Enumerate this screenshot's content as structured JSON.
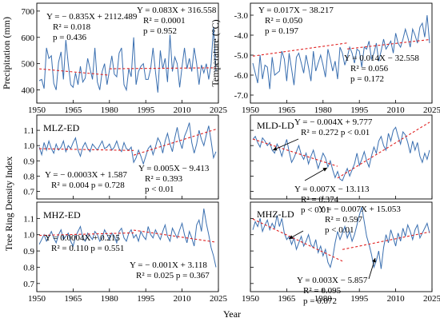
{
  "chart_data": {
    "type": "line",
    "xlabel": "Year",
    "shared_ylabel": "Tree Ring Density Index",
    "colors": {
      "series": "#3a6fb0",
      "trend": "#e02020"
    },
    "panels": [
      {
        "id": "prec",
        "label": "",
        "ylabel": "Precipitation (mm)",
        "xlim": [
          1950,
          2025
        ],
        "ylim": [
          350,
          730
        ],
        "xticks": [
          1950,
          1965,
          1980,
          1995,
          2010,
          2025
        ],
        "yticks": [
          400,
          500,
          600,
          700
        ],
        "x_start": 1951,
        "values": [
          435,
          440,
          405,
          560,
          520,
          530,
          425,
          400,
          505,
          545,
          440,
          590,
          500,
          420,
          410,
          465,
          420,
          490,
          430,
          445,
          520,
          480,
          440,
          560,
          430,
          400,
          470,
          500,
          420,
          475,
          530,
          460,
          450,
          540,
          560,
          420,
          400,
          480,
          450,
          600,
          420,
          470,
          490,
          500,
          440,
          440,
          480,
          560,
          470,
          390,
          550,
          480,
          520,
          430,
          610,
          470,
          525,
          500,
          410,
          490,
          560,
          480,
          520,
          470,
          560,
          500,
          420,
          495,
          465,
          500,
          440,
          500,
          640,
          470
        ],
        "trends": [
          {
            "x": [
              1951,
              1980
            ],
            "y": [
              480.3,
              456.1
            ]
          },
          {
            "x": [
              1980,
              2024
            ],
            "y": [
              480.6,
              484.2
            ]
          }
        ],
        "annotations": [
          {
            "lines": [
              "Y = − 0.835X + 2112.489",
              "R² = 0.018",
              "p = 0.436"
            ]
          },
          {
            "lines": [
              "Y = 0.083X + 316.558",
              "R² = 0.0001",
              "p = 0.952"
            ]
          }
        ]
      },
      {
        "id": "temp",
        "label": "",
        "ylabel": "Temperature (°C)",
        "xlim": [
          1950,
          2025
        ],
        "ylim": [
          -7.4,
          -2.4
        ],
        "xticks": [
          1950,
          1965,
          1980,
          1995,
          2010,
          2025
        ],
        "yticks": [
          -7.0,
          -6.0,
          -5.0,
          -4.0,
          -3.0
        ],
        "x_start": 1951,
        "values": [
          -5.4,
          -5.9,
          -6.4,
          -5.0,
          -6.2,
          -5.5,
          -5.6,
          -6.7,
          -5.1,
          -6.0,
          -5.9,
          -5.8,
          -4.8,
          -5.2,
          -6.3,
          -4.9,
          -5.7,
          -6.5,
          -5.1,
          -4.9,
          -5.4,
          -5.9,
          -5.0,
          -5.6,
          -6.3,
          -4.8,
          -5.8,
          -5.4,
          -5.0,
          -5.5,
          -6.1,
          -4.7,
          -5.2,
          -5.8,
          -5.3,
          -6.2,
          -4.6,
          -4.9,
          -5.5,
          -5.1,
          -4.6,
          -4.9,
          -5.4,
          -4.7,
          -4.8,
          -5.6,
          -4.6,
          -4.7,
          -4.3,
          -5.2,
          -4.9,
          -4.4,
          -5.3,
          -4.8,
          -4.2,
          -4.7,
          -4.5,
          -4.3,
          -4.9,
          -3.9,
          -4.4,
          -4.6,
          -4.2,
          -3.7,
          -4.1,
          -4.6,
          -3.7,
          -4.0,
          -4.4,
          -3.6,
          -3.4,
          -4.1,
          -3.0,
          -4.4
        ],
        "trends": [
          {
            "x": [
              1951,
              1990
            ],
            "y": [
              -5.05,
              -4.39
            ]
          },
          {
            "x": [
              1990,
              2024
            ],
            "y": [
              -4.69,
              -4.22
            ]
          }
        ],
        "annotations": [
          {
            "lines": [
              "Y = 0.017X − 38.217",
              "R² = 0.050",
              "p = 0.197"
            ]
          },
          {
            "lines": [
              "Y = 0.014X − 32.558",
              "R² = 0.056",
              "p = 0.172"
            ]
          }
        ]
      },
      {
        "id": "mlz",
        "label": "MLZ-ED",
        "xlim": [
          1950,
          2025
        ],
        "ylim": [
          0.65,
          1.2
        ],
        "xticks": [],
        "yticks": [
          0.7,
          0.8,
          0.9,
          1.0,
          1.1
        ],
        "x_start": 1951,
        "values": [
          0.99,
          0.94,
          1.02,
          0.97,
          1.03,
          0.98,
          0.95,
          1.01,
          0.97,
          0.99,
          1.03,
          0.96,
          1.0,
          0.98,
          1.02,
          1.05,
          0.97,
          0.93,
          0.99,
          1.02,
          0.98,
          0.96,
          1.01,
          0.99,
          0.97,
          1.0,
          1.03,
          0.98,
          0.99,
          1.01,
          0.97,
          0.99,
          1.03,
          0.98,
          0.96,
          1.02,
          0.98,
          0.97,
          0.99,
          0.89,
          0.92,
          0.97,
          0.93,
          0.88,
          0.93,
          0.98,
          1.0,
          0.94,
          0.99,
          1.05,
          1.02,
          0.95,
          1.03,
          1.08,
          1.01,
          0.96,
          1.05,
          1.12,
          1.03,
          0.98,
          1.06,
          1.1,
          1.15,
          1.02,
          0.95,
          1.01,
          1.1,
          1.04,
          1.0,
          1.07,
          1.13,
          1.03,
          0.92,
          0.96
        ],
        "trends": [
          {
            "x": [
              1951,
              1990
            ],
            "y": [
              0.9795,
              0.9678
            ]
          },
          {
            "x": [
              1990,
              2024
            ],
            "y": [
              0.937,
              1.107
            ]
          }
        ],
        "annotations": [
          {
            "lines": [
              "Y = − 0.0003X + 1.587",
              "R² = 0.004   p = 0.728"
            ]
          },
          {
            "lines": [
              "Y = 0.005X − 9.413",
              "R² = 0.393",
              "p < 0.01"
            ]
          }
        ]
      },
      {
        "id": "mld",
        "label": "MLD-LD",
        "xlim": [
          1950,
          2025
        ],
        "ylim": [
          0.65,
          1.2
        ],
        "xticks": [],
        "yticks": [],
        "x_start": 1951,
        "values": [
          1.04,
          1.06,
          1.02,
          0.99,
          1.05,
          1.03,
          1.0,
          1.02,
          0.97,
          0.95,
          1.01,
          0.98,
          0.93,
          0.99,
          1.04,
          0.96,
          0.89,
          0.92,
          0.96,
          1.0,
          0.94,
          0.91,
          0.95,
          0.88,
          0.93,
          0.97,
          0.91,
          0.85,
          0.9,
          0.95,
          0.92,
          0.86,
          0.9,
          0.84,
          0.79,
          0.83,
          0.78,
          0.77,
          0.81,
          0.85,
          0.8,
          0.84,
          0.88,
          0.95,
          0.87,
          0.91,
          0.96,
          0.9,
          0.86,
          0.93,
          0.99,
          0.95,
          1.03,
          1.06,
          1.0,
          0.97,
          1.08,
          1.03,
          1.1,
          1.12,
          1.06,
          1.01,
          1.09,
          1.07,
          1.02,
          0.95,
          1.03,
          0.97,
          1.02,
          0.93,
          0.89,
          0.95,
          0.91,
          0.97
        ],
        "trends": [
          {
            "x": [
              1951,
              1986
            ],
            "y": [
              1.0428,
              0.864
            ]
          },
          {
            "x": [
              1986,
              2024
            ],
            "y": [
              0.787,
              1.153
            ]
          }
        ],
        "annotations": [
          {
            "lines": [
              "Y = − 0.004X + 9.777",
              "R² = 0.272   p < 0.01"
            ]
          },
          {
            "lines": [
              "Y = 0.007X − 13.113",
              "R² = 0.374",
              "p < 0.01"
            ]
          }
        ]
      },
      {
        "id": "mhz",
        "label": "MHZ-ED",
        "xlim": [
          1950,
          2025
        ],
        "ylim": [
          0.65,
          1.2
        ],
        "xticks": [
          1950,
          1965,
          1980,
          1995,
          2010,
          2025
        ],
        "yticks": [
          0.7,
          0.8,
          0.9,
          1.0,
          1.1
        ],
        "x_start": 1951,
        "values": [
          0.94,
          0.97,
          1.0,
          0.96,
          0.99,
          1.02,
          0.98,
          0.95,
          1.0,
          1.03,
          0.97,
          0.99,
          1.01,
          0.96,
          0.93,
          0.99,
          1.02,
          1.05,
          0.98,
          0.96,
          1.01,
          0.99,
          0.97,
          1.02,
          1.0,
          0.96,
          0.98,
          1.03,
          1.0,
          0.97,
          1.01,
          0.99,
          0.95,
          1.02,
          1.04,
          0.98,
          0.96,
          1.01,
          1.03,
          0.98,
          1.0,
          0.96,
          1.02,
          0.99,
          0.97,
          1.05,
          1.0,
          0.98,
          1.03,
          1.0,
          0.97,
          1.02,
          1.06,
          0.99,
          0.96,
          1.04,
          1.01,
          0.98,
          1.03,
          1.07,
          1.0,
          0.95,
          1.02,
          0.98,
          0.93,
          1.06,
          1.09,
          1.02,
          1.16,
          1.07,
          1.0,
          0.92,
          0.87,
          0.8
        ],
        "trends": [
          {
            "x": [
              1951,
              1990
            ],
            "y": [
              0.9956,
              1.0112
            ]
          },
          {
            "x": [
              1990,
              2024
            ],
            "y": [
              1.028,
              0.954
            ]
          }
        ],
        "annotations": [
          {
            "lines": [
              "Y = 0.0004X + 0.215",
              "R² = 0.110   p = 0.551"
            ]
          },
          {
            "lines": [
              "Y = − 0.001X + 3.118",
              "R² = 0.025   p = 0.367"
            ]
          }
        ]
      },
      {
        "id": "mhzld",
        "label": "MHZ-LD",
        "xlim": [
          1950,
          2025
        ],
        "ylim": [
          0.65,
          1.2
        ],
        "xticks": [
          1950,
          1965,
          1980,
          1995,
          2010,
          2025
        ],
        "yticks": [],
        "x_start": 1951,
        "values": [
          1.03,
          1.08,
          1.05,
          1.1,
          1.02,
          1.06,
          1.09,
          1.03,
          1.07,
          1.04,
          1.12,
          1.05,
          1.1,
          1.01,
          0.97,
          0.99,
          0.94,
          0.98,
          0.91,
          0.95,
          0.99,
          0.93,
          0.96,
          1.0,
          0.94,
          0.92,
          0.97,
          0.89,
          0.93,
          0.87,
          0.91,
          0.83,
          0.8,
          0.86,
          0.95,
          1.02,
          0.97,
          1.01,
          1.05,
          0.98,
          1.02,
          0.96,
          1.0,
          1.06,
          1.12,
          1.17,
          1.08,
          0.99,
          0.94,
          0.88,
          0.8,
          0.84,
          0.9,
          0.79,
          0.92,
          1.0,
          0.95,
          1.03,
          0.98,
          0.93,
          1.01,
          0.96,
          1.04,
          0.99,
          1.06,
          1.02,
          0.97,
          1.03,
          1.06,
          0.98,
          1.01,
          1.04,
          1.07,
          1.01
        ],
        "trends": [
          {
            "x": [
              1951,
              1988
            ],
            "y": [
              1.0963,
              0.8373
            ]
          },
          {
            "x": [
              1988,
              2024
            ],
            "y": [
              0.909,
              1.017
            ]
          }
        ],
        "annotations": [
          {
            "lines": [
              "Y = − 0.007X + 15.053",
              "R² = 0.597",
              "p < 0.01"
            ]
          },
          {
            "lines": [
              "Y = 0.003X − 5.857",
              "R² = 0.095",
              "p = 0.072"
            ]
          }
        ]
      }
    ]
  }
}
